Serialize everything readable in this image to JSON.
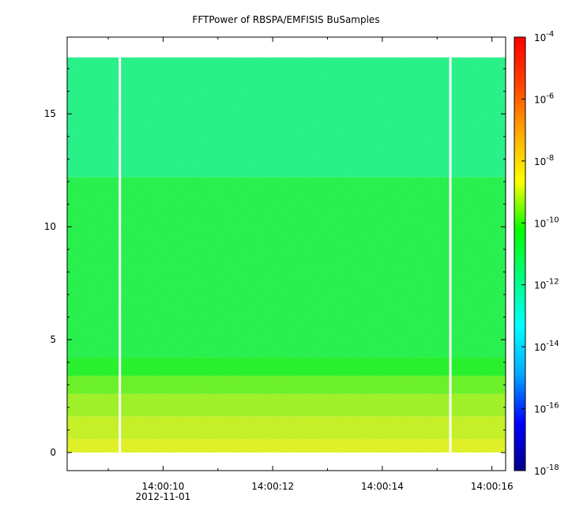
{
  "chart_data": {
    "type": "heatmap",
    "title": "FFTPower of RBSPA/EMFISIS  BuSamples",
    "xlabel": "",
    "ylabel": "",
    "x_ticks": [
      {
        "value": 10,
        "label": "14:00:10"
      },
      {
        "value": 12,
        "label": "14:00:12"
      },
      {
        "value": 14,
        "label": "14:00:14"
      },
      {
        "value": 16,
        "label": "14:00:16"
      }
    ],
    "x_date_label": "2012-11-01",
    "xlim": [
      8.25,
      16.25
    ],
    "ylim": [
      -0.8,
      18.4
    ],
    "y_ticks": [
      0,
      5,
      10,
      15
    ],
    "data_extent": {
      "y": [
        0,
        17.5
      ],
      "x": [
        8.25,
        16.25
      ]
    },
    "data_gaps_x": [
      [
        9.19,
        9.23
      ],
      [
        15.22,
        15.26
      ]
    ],
    "bands": [
      {
        "y": [
          0,
          0.6
        ],
        "log_power": -8.8
      },
      {
        "y": [
          0.6,
          1.6
        ],
        "log_power": -9.0
      },
      {
        "y": [
          1.6,
          2.6
        ],
        "log_power": -9.3
      },
      {
        "y": [
          2.6,
          3.4
        ],
        "log_power": -9.7
      },
      {
        "y": [
          3.4,
          4.2
        ],
        "log_power": -10.3
      },
      {
        "y": [
          4.2,
          12.2
        ],
        "log_power": -10.8
      },
      {
        "y": [
          12.2,
          17.5
        ],
        "log_power": -11.7
      }
    ],
    "colorbar": {
      "scale": "log",
      "range": [
        -18,
        -4
      ],
      "ticks": [
        -4,
        -6,
        -8,
        -10,
        -12,
        -14,
        -16,
        -18
      ],
      "colors": [
        "#00008c",
        "#0000ff",
        "#00a8ff",
        "#00ffff",
        "#00ff80",
        "#00ff00",
        "#ffff00",
        "#ffaa00",
        "#ff4400",
        "#ff0000"
      ]
    }
  }
}
